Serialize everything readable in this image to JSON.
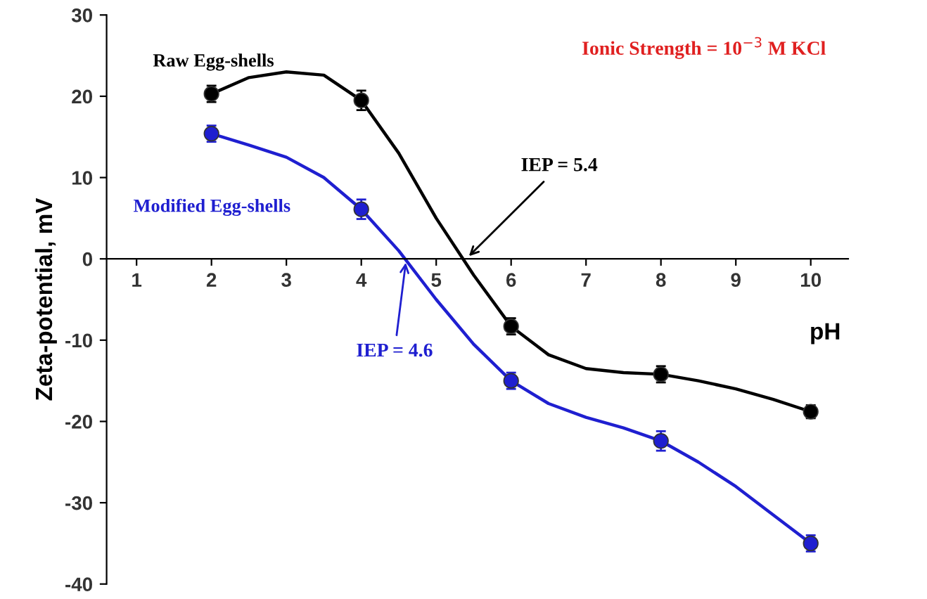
{
  "chart_data": {
    "type": "scatter",
    "xlabel": "pH",
    "ylabel": "Zeta-potential, mV",
    "x": [
      2,
      4,
      6,
      8,
      10
    ],
    "series": [
      {
        "name": "Raw Egg-shells",
        "color": "#000000",
        "values": [
          20.3,
          19.5,
          -8.3,
          -14.2,
          -18.8
        ],
        "errors": [
          1,
          1.2,
          1,
          1,
          0.8
        ]
      },
      {
        "name": "Modified Egg-shells",
        "color": "#1f1fd0",
        "values": [
          15.4,
          6.1,
          -15,
          -22.4,
          -35
        ],
        "errors": [
          1,
          1.2,
          1,
          1.2,
          1
        ]
      },
      {
        "type": "line",
        "marker": "none",
        "color": "#000000",
        "x": [
          2,
          2.5,
          3,
          3.5,
          4,
          4.5,
          5,
          5.5,
          6,
          6.5,
          7,
          7.5,
          8,
          8.5,
          9,
          9.5,
          10
        ],
        "values": [
          20.3,
          22.3,
          23,
          22.6,
          19.5,
          13,
          5,
          -2,
          -8.3,
          -11.8,
          -13.5,
          -14,
          -14.2,
          -15,
          -16,
          -17.3,
          -18.8
        ]
      },
      {
        "type": "line",
        "marker": "none",
        "color": "#1f1fd0",
        "x": [
          2,
          2.5,
          3,
          3.5,
          4,
          4.5,
          5,
          5.5,
          6,
          6.5,
          7,
          7.5,
          8,
          8.5,
          9,
          9.5,
          10
        ],
        "values": [
          15.4,
          14,
          12.5,
          10,
          6.1,
          1,
          -5,
          -10.5,
          -15,
          -17.8,
          -19.5,
          -20.8,
          -22.4,
          -25,
          -28,
          -31.5,
          -35
        ]
      }
    ],
    "annotations": [
      {
        "text": "IEP = 5.4",
        "x": 5.4,
        "y": 0
      },
      {
        "text": "IEP = 4.6",
        "x": 4.6,
        "y": 0
      },
      "Ionic Strength = 10$^{−3}$ M KCl"
    ],
    "xlim": [
      0.6,
      10.5
    ],
    "xticks": [
      1,
      2,
      3,
      4,
      5,
      6,
      7,
      8,
      9,
      10
    ],
    "ylim": [
      -40,
      30
    ],
    "yticks": [
      -40,
      -30,
      -20,
      -10,
      0,
      10,
      20,
      30
    ],
    "marker": "circle",
    "line_style": "solid",
    "grid": false,
    "legend": false
  }
}
